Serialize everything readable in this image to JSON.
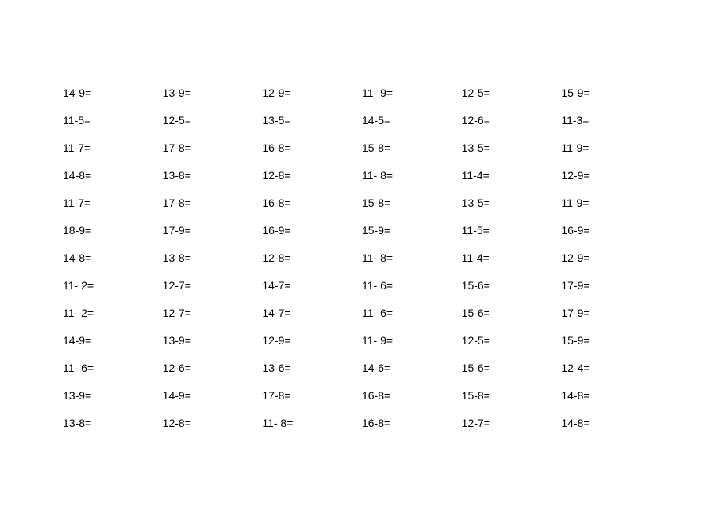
{
  "worksheet": {
    "type": "table",
    "columns": 6,
    "rows": 13,
    "background_color": "#ffffff",
    "text_color": "#000000",
    "font_size": 14,
    "font_family": "Arial, sans-serif",
    "row_gap": 19,
    "problems": [
      [
        "14-9=",
        "13-9=",
        "12-9=",
        "11- 9=",
        "12-5=",
        "15-9="
      ],
      [
        "11-5=",
        "12-5=",
        "13-5=",
        "14-5=",
        "12-6=",
        "11-3="
      ],
      [
        "11-7=",
        "17-8=",
        "16-8=",
        "15-8=",
        "13-5=",
        "11-9="
      ],
      [
        "14-8=",
        "13-8=",
        "12-8=",
        "11- 8=",
        "11-4=",
        "12-9="
      ],
      [
        "11-7=",
        "17-8=",
        "16-8=",
        "15-8=",
        "13-5=",
        "11-9="
      ],
      [
        "18-9=",
        "17-9=",
        "16-9=",
        "15-9=",
        "11-5=",
        "16-9="
      ],
      [
        "14-8=",
        "13-8=",
        "12-8=",
        "11- 8=",
        "11-4=",
        "12-9="
      ],
      [
        "11- 2=",
        "12-7=",
        "14-7=",
        "11- 6=",
        "15-6=",
        "17-9="
      ],
      [
        "11- 2=",
        "12-7=",
        "14-7=",
        "11- 6=",
        "15-6=",
        "17-9="
      ],
      [
        "14-9=",
        "13-9=",
        "12-9=",
        "11- 9=",
        "12-5=",
        "15-9="
      ],
      [
        "11- 6=",
        "12-6=",
        "13-6=",
        "14-6=",
        "15-6=",
        "12-4="
      ],
      [
        "13-9=",
        "14-9=",
        "17-8=",
        "16-8=",
        "15-8=",
        "14-8="
      ],
      [
        "13-8=",
        "12-8=",
        "11- 8=",
        "16-8=",
        "12-7=",
        "14-8="
      ]
    ]
  }
}
